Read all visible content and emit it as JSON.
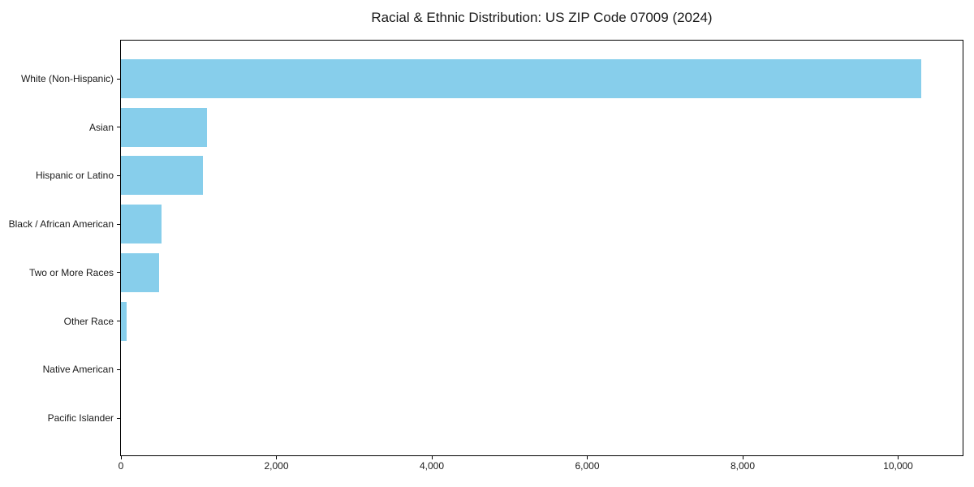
{
  "title": "Racial & Ethnic Distribution: US ZIP Code 07009 (2024)",
  "colors": {
    "bar": "#87ceeb",
    "spine": "#000000",
    "text": "#1a1a1a",
    "background": "#ffffff"
  },
  "chart_data": {
    "type": "bar",
    "orientation": "horizontal",
    "title": "Racial & Ethnic Distribution: US ZIP Code 07009 (2024)",
    "categories": [
      "White (Non-Hispanic)",
      "Asian",
      "Hispanic or Latino",
      "Black / African American",
      "Two or More Races",
      "Other Race",
      "Native American",
      "Pacific Islander"
    ],
    "values": [
      10300,
      1110,
      1060,
      520,
      490,
      70,
      0,
      0
    ],
    "xlabel": "",
    "ylabel": "",
    "xlim": [
      0,
      10830
    ],
    "x_ticks": [
      0,
      2000,
      4000,
      6000,
      8000,
      10000
    ],
    "x_tick_labels": [
      "0",
      "2,000",
      "4,000",
      "6,000",
      "8,000",
      "10,000"
    ],
    "grid": false,
    "legend": false,
    "bar_color": "#87ceeb"
  }
}
